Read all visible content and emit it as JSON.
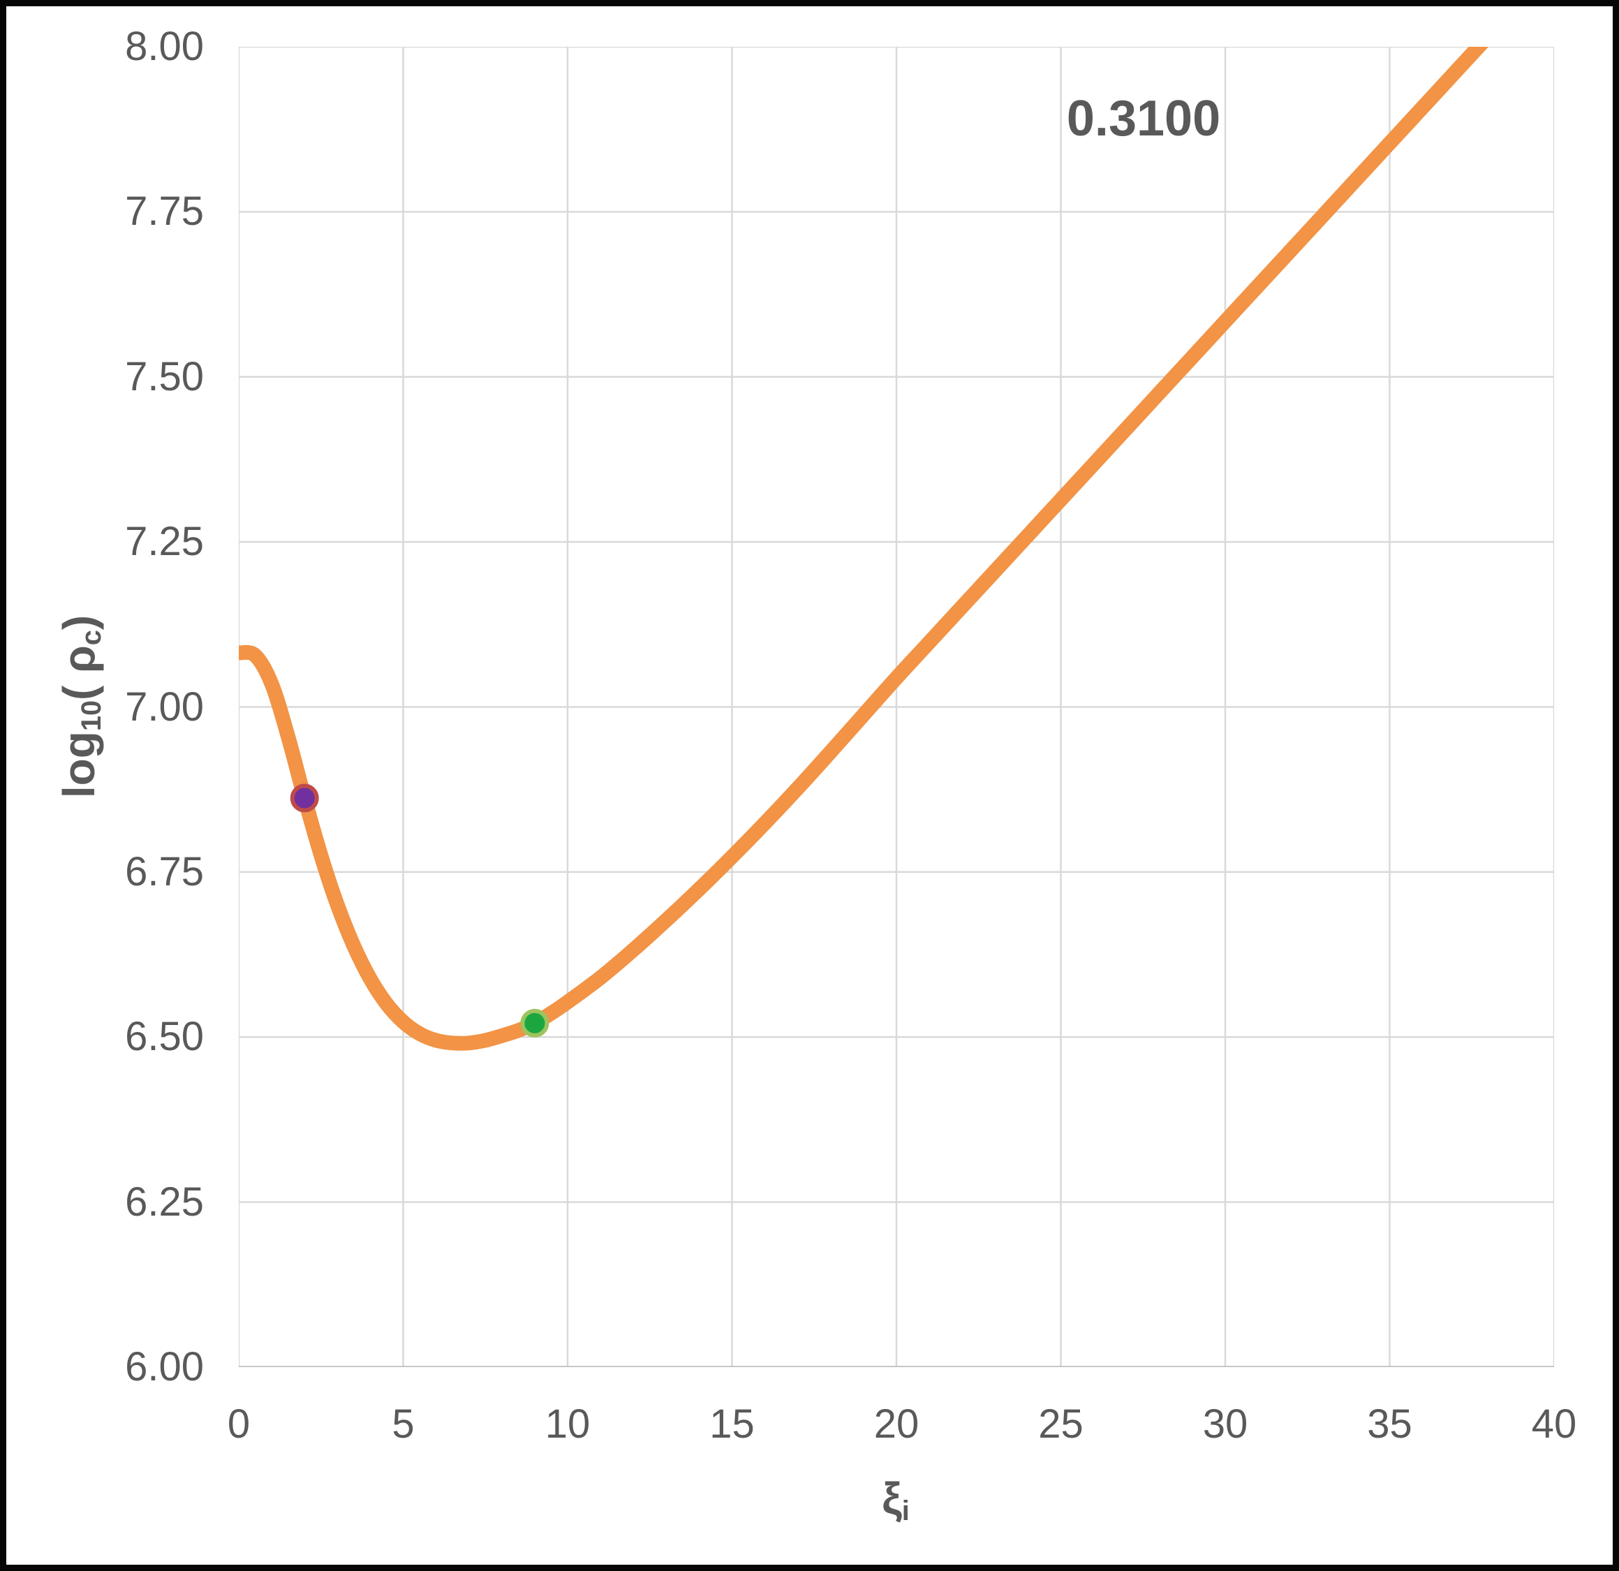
{
  "figure": {
    "background": "#FFFFFF",
    "border_color": "#060606",
    "tick_color": "#595959",
    "gridline_color": "#D9D9D9",
    "axis_line_color": "#BFBFBF",
    "y_axis_title": {
      "pre": "log",
      "sub1": "10",
      "mid": "( ρ",
      "sub2": "c",
      "post": ")"
    },
    "x_axis_title": {
      "base": "ξ",
      "sub": "i"
    }
  },
  "chart_data": {
    "type": "line",
    "title": "",
    "xlabel": "ξ_i",
    "ylabel": "log10( ρ_c )",
    "annotation": "0.3100",
    "annotation_position": {
      "x": 27.5,
      "y": 7.78
    },
    "xlim": [
      0,
      40
    ],
    "ylim": [
      6.0,
      8.0
    ],
    "grid": true,
    "legend": false,
    "x_ticks": [
      0,
      5,
      10,
      15,
      20,
      25,
      30,
      35,
      40
    ],
    "x_tick_labels": [
      "0",
      "5",
      "10",
      "15",
      "20",
      "25",
      "30",
      "35",
      "40"
    ],
    "y_ticks": [
      6.0,
      6.25,
      6.5,
      6.75,
      7.0,
      7.25,
      7.5,
      7.75,
      8.0
    ],
    "y_tick_labels": [
      "6.00",
      "6.25",
      "6.50",
      "6.75",
      "7.00",
      "7.25",
      "7.50",
      "7.75",
      "8.00"
    ],
    "series": [
      {
        "name": "log10(rho_c) vs xi_i",
        "color": "#F29345",
        "line_width": 21,
        "points": [
          [
            0.0,
            7.082
          ],
          [
            0.5,
            7.078
          ],
          [
            1.0,
            7.035
          ],
          [
            1.5,
            6.955
          ],
          [
            2.0,
            6.862
          ],
          [
            2.5,
            6.775
          ],
          [
            3.0,
            6.7
          ],
          [
            3.5,
            6.638
          ],
          [
            4.0,
            6.588
          ],
          [
            4.5,
            6.55
          ],
          [
            5.0,
            6.523
          ],
          [
            5.5,
            6.505
          ],
          [
            6.0,
            6.495
          ],
          [
            6.5,
            6.491
          ],
          [
            7.0,
            6.491
          ],
          [
            7.5,
            6.495
          ],
          [
            8.0,
            6.502
          ],
          [
            8.5,
            6.51
          ],
          [
            9.0,
            6.521
          ],
          [
            9.5,
            6.536
          ],
          [
            10.0,
            6.553
          ],
          [
            11.0,
            6.59
          ],
          [
            12.0,
            6.632
          ],
          [
            13.0,
            6.677
          ],
          [
            14.0,
            6.724
          ],
          [
            15.0,
            6.773
          ],
          [
            16.0,
            6.824
          ],
          [
            17.0,
            6.877
          ],
          [
            18.0,
            6.932
          ],
          [
            19.0,
            6.988
          ],
          [
            20.0,
            7.044
          ],
          [
            21.0,
            7.098
          ],
          [
            22.0,
            7.152
          ],
          [
            23.0,
            7.206
          ],
          [
            24.0,
            7.26
          ],
          [
            25.0,
            7.314
          ],
          [
            26.0,
            7.368
          ],
          [
            27.0,
            7.422
          ],
          [
            28.0,
            7.476
          ],
          [
            29.0,
            7.53
          ],
          [
            30.0,
            7.584
          ],
          [
            31.0,
            7.638
          ],
          [
            32.0,
            7.692
          ],
          [
            33.0,
            7.746
          ],
          [
            34.0,
            7.8
          ],
          [
            35.0,
            7.854
          ],
          [
            36.0,
            7.908
          ],
          [
            37.0,
            7.962
          ],
          [
            38.0,
            8.016
          ]
        ]
      }
    ],
    "markers": [
      {
        "x": 2.0,
        "y": 6.862,
        "fill": "#7030A0",
        "stroke": "#BE4B48",
        "radius": 17.5,
        "stroke_width": 6,
        "label": "purple point"
      },
      {
        "x": 9.0,
        "y": 6.521,
        "fill": "#1CA640",
        "stroke": "#9DC35F",
        "radius": 17.5,
        "stroke_width": 6,
        "label": "green point"
      }
    ]
  }
}
